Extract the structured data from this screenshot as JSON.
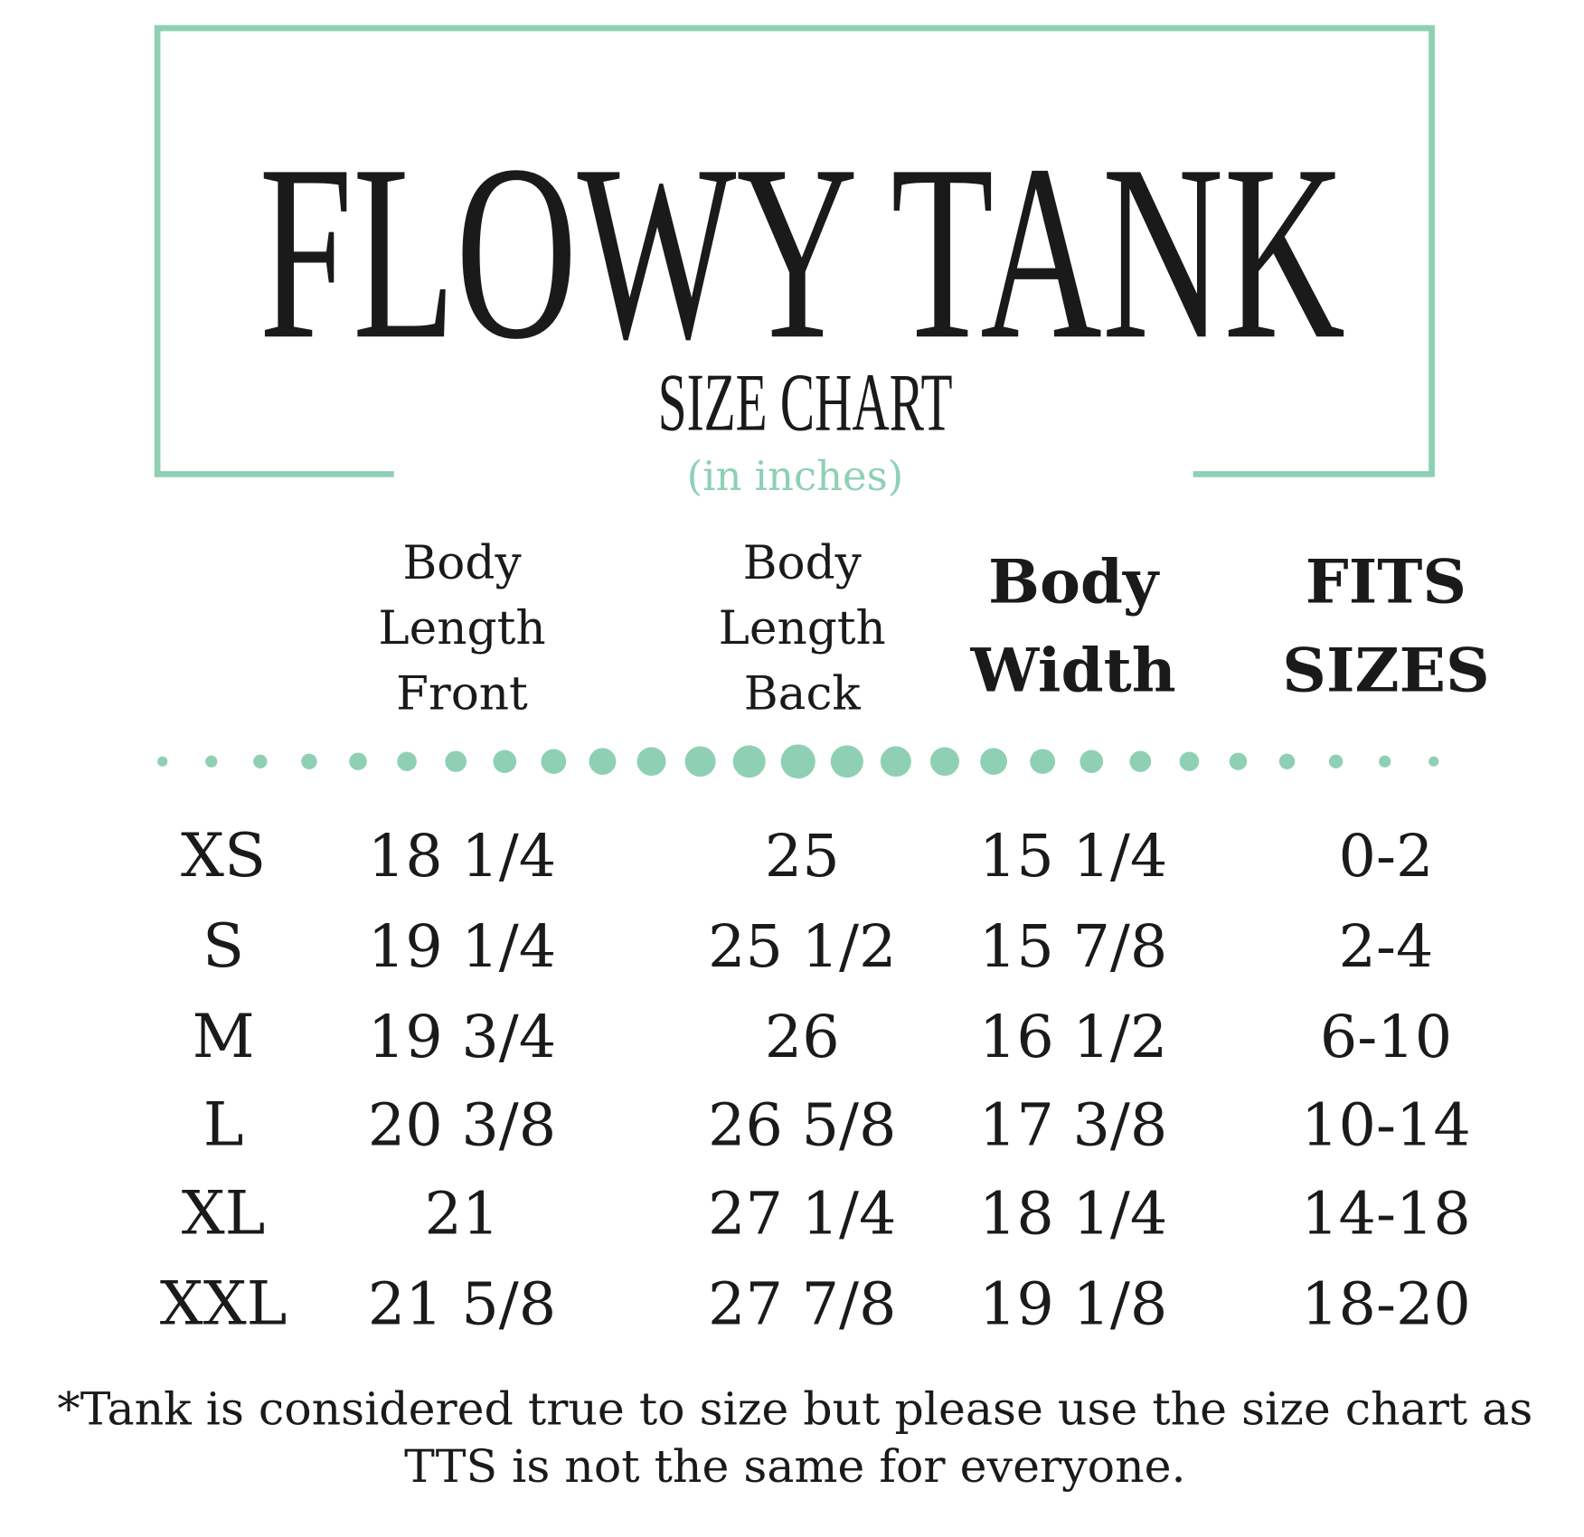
{
  "header": {
    "title": "FLOWY TANK",
    "subtitle": "SIZE CHART",
    "unit": "(in inches)"
  },
  "table": {
    "headers": [
      [
        "Body",
        "Length",
        "Front"
      ],
      [
        "Body",
        "Length",
        "Back"
      ],
      [
        "Body",
        "Width"
      ],
      [
        "FITS",
        "SIZES"
      ]
    ],
    "rows": [
      [
        "XS",
        "18 1/4",
        "25",
        "15 1/4",
        "0-2"
      ],
      [
        "S",
        "19 1/4",
        "25 1/2",
        "15 7/8",
        "2-4"
      ],
      [
        "M",
        "19 3/4",
        "26",
        "16 1/2",
        "6-10"
      ],
      [
        "L",
        "20 3/8",
        "26 5/8",
        "17 3/8",
        "10-14"
      ],
      [
        "XL",
        "21",
        "27 1/4",
        "18 1/4",
        "14-18"
      ],
      [
        "XXL",
        "21 5/8",
        "27 7/8",
        "19 1/8",
        "18-20"
      ]
    ]
  },
  "footnote": [
    "*Tank is considered true to size but please use the size chart as",
    "TTS is not the same for everyone."
  ]
}
